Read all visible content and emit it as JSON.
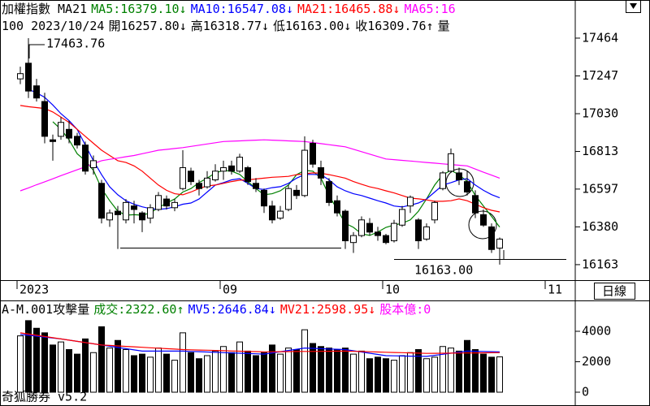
{
  "header": {
    "line1": [
      {
        "text": "加權指數 MA21",
        "color": "#000000"
      },
      {
        "text": "MA5:16379.10",
        "color": "#008000"
      },
      {
        "text": "↓",
        "color": "#008000"
      },
      {
        "text": "MA10:16547.08",
        "color": "#0000ff"
      },
      {
        "text": "↓",
        "color": "#0000ff"
      },
      {
        "text": "MA21:16465.88",
        "color": "#ff0000"
      },
      {
        "text": "↓",
        "color": "#ff0000"
      },
      {
        "text": "MA65:16",
        "color": "#ff00ff"
      }
    ],
    "line2": [
      {
        "text": "100 2023/10/24",
        "color": "#000000"
      },
      {
        "text": "開16257.80",
        "color": "#000000"
      },
      {
        "text": "↓",
        "color": "#000000"
      },
      {
        "text": "高16318.77",
        "color": "#000000"
      },
      {
        "text": "↓",
        "color": "#000000"
      },
      {
        "text": "低16163.00",
        "color": "#000000"
      },
      {
        "text": "↓",
        "color": "#000000"
      },
      {
        "text": "收16309.76",
        "color": "#000000"
      },
      {
        "text": "↑",
        "color": "#000000"
      },
      {
        "text": "量",
        "color": "#000000"
      }
    ]
  },
  "period": "日線",
  "footer": "奇狐勝券 v5.2",
  "chart_data": [
    {
      "type": "candlestick",
      "categories": [
        "2023",
        null,
        null,
        null,
        null,
        null,
        null,
        null,
        null,
        null,
        null,
        null,
        null,
        null,
        null,
        null,
        null,
        null,
        null,
        null,
        null,
        null,
        null,
        null,
        null,
        "09",
        null,
        null,
        null,
        null,
        null,
        null,
        null,
        null,
        null,
        null,
        null,
        null,
        null,
        null,
        null,
        null,
        null,
        null,
        null,
        "10",
        null,
        null,
        null,
        null,
        null,
        null,
        null,
        null,
        null,
        null,
        null,
        null,
        null,
        null,
        null,
        null,
        null,
        null,
        null,
        "11",
        null,
        null
      ],
      "open": [
        17230,
        17320,
        17190,
        17100,
        16880,
        16900,
        16940,
        16900,
        16850,
        16720,
        16630,
        16420,
        16470,
        16420,
        16500,
        16460,
        16430,
        16480,
        16540,
        16490,
        16600,
        16700,
        16630,
        16610,
        16650,
        16700,
        16730,
        16700,
        16720,
        16630,
        16590,
        16500,
        16430,
        16480,
        16590,
        16560,
        16860,
        16720,
        16640,
        16530,
        16470,
        16290,
        16330,
        16400,
        16350,
        16330,
        16300,
        16390,
        16500,
        16420,
        16310,
        16420,
        16600,
        16700,
        16690,
        16640,
        16560,
        16450,
        16380,
        16257.8,
        null,
        null,
        null,
        null,
        null,
        null,
        null,
        null
      ],
      "high": [
        17300,
        17463.76,
        17230,
        17150,
        16910,
        17010,
        16990,
        16920,
        16870,
        16790,
        16650,
        16480,
        16500,
        16540,
        16530,
        16470,
        16510,
        16580,
        16560,
        16540,
        16820,
        16720,
        16650,
        16700,
        16740,
        16760,
        16760,
        16800,
        16730,
        16660,
        16600,
        16530,
        16500,
        16620,
        16620,
        16900,
        16880,
        16760,
        16660,
        16560,
        16480,
        16350,
        16440,
        16430,
        16380,
        16340,
        16420,
        16500,
        16560,
        16430,
        16400,
        16530,
        16700,
        16830,
        16720,
        16700,
        16590,
        16480,
        16400,
        16318.77,
        null,
        null,
        null,
        null,
        null,
        null,
        null,
        null
      ],
      "low": [
        17200,
        17120,
        17100,
        16860,
        16760,
        16880,
        16860,
        16830,
        16680,
        16680,
        16400,
        16380,
        16253,
        16400,
        16400,
        16350,
        16400,
        16470,
        16480,
        16470,
        16590,
        16620,
        16560,
        16600,
        16640,
        16650,
        16680,
        16690,
        16620,
        16580,
        16460,
        16400,
        16420,
        16470,
        16540,
        16550,
        16720,
        16620,
        16500,
        16440,
        16253,
        16230,
        16320,
        16330,
        16300,
        16280,
        16290,
        16380,
        16460,
        16253,
        16300,
        16400,
        16590,
        16690,
        16620,
        16560,
        16430,
        16380,
        16230,
        16163.0,
        null,
        null,
        null,
        null,
        null,
        null,
        null,
        null
      ],
      "close": [
        17260,
        17160,
        17120,
        16900,
        16870,
        16980,
        16890,
        16850,
        16700,
        16760,
        16430,
        16460,
        16450,
        16520,
        16480,
        16420,
        16490,
        16560,
        16500,
        16520,
        16720,
        16640,
        16600,
        16660,
        16700,
        16720,
        16700,
        16780,
        16640,
        16600,
        16500,
        16420,
        16470,
        16600,
        16560,
        16820,
        16740,
        16660,
        16520,
        16460,
        16300,
        16330,
        16420,
        16350,
        16330,
        16290,
        16400,
        16480,
        16550,
        16300,
        16380,
        16520,
        16690,
        16800,
        16650,
        16580,
        16460,
        16390,
        16250,
        16309.76,
        null,
        null,
        null,
        null,
        null,
        null,
        null,
        null
      ],
      "up_color": "#ffffff",
      "down_color": "#000000",
      "series": [
        {
          "name": "MA5",
          "color": "#008000",
          "values": [
            null,
            null,
            null,
            null,
            16984,
            16940,
            16880,
            16800,
            16760,
            16704,
            16600,
            16530,
            16470,
            16447,
            16450,
            16447,
            16460,
            16490,
            16517,
            16540,
            16580,
            16600,
            16634,
            16660,
            16690,
            16704,
            16700,
            16681,
            16640,
            16600,
            16564,
            16570,
            16587,
            16620,
            16680,
            16704,
            16700,
            16660,
            16560,
            16480,
            16400,
            16377,
            16340,
            16331,
            16350,
            16377,
            16390,
            16401,
            16420,
            16470,
            16541,
            16620,
            16680,
            16704,
            16680,
            16640,
            16560,
            16500,
            16440,
            16379.1,
            null,
            null,
            null,
            null,
            null,
            null,
            null,
            null
          ]
        },
        {
          "name": "MA10",
          "color": "#0000ff",
          "values": [
            null,
            17170,
            17150,
            17124,
            17080,
            17030,
            16990,
            16940,
            16850,
            16760,
            16680,
            16610,
            16564,
            16530,
            16510,
            16495,
            16485,
            16480,
            16485,
            16495,
            16510,
            16517,
            16540,
            16580,
            16620,
            16634,
            16650,
            16657,
            16630,
            16600,
            16595,
            16605,
            16611,
            16630,
            16660,
            16681,
            16681,
            16680,
            16650,
            16610,
            16587,
            16570,
            16560,
            16545,
            16530,
            16517,
            16500,
            16494,
            16505,
            16517,
            16540,
            16580,
            16620,
            16634,
            16650,
            16657,
            16620,
            16590,
            16565,
            16547.08,
            null,
            null,
            null,
            null,
            null,
            null,
            null,
            null
          ]
        },
        {
          "name": "MA21",
          "color": "#ff0000",
          "values": [
            17077,
            17070,
            17065,
            17060,
            17040,
            17010,
            16980,
            16940,
            16900,
            16860,
            16820,
            16790,
            16760,
            16750,
            16730,
            16700,
            16660,
            16620,
            16590,
            16570,
            16564,
            16580,
            16600,
            16615,
            16620,
            16630,
            16640,
            16648,
            16650,
            16655,
            16660,
            16665,
            16667,
            16670,
            16680,
            16685,
            16690,
            16688,
            16680,
            16670,
            16660,
            16640,
            16625,
            16610,
            16600,
            16587,
            16575,
            16560,
            16545,
            16541,
            16535,
            16527,
            16527,
            16530,
            16541,
            16530,
            16510,
            16490,
            16475,
            16465.88,
            null,
            null,
            null,
            null,
            null,
            null,
            null,
            null
          ]
        },
        {
          "name": "MA65",
          "color": "#ff00ff",
          "values": [
            16587,
            16604,
            16622,
            16639,
            16656,
            16674,
            16691,
            16708,
            16725,
            16743,
            16760,
            16768,
            16775,
            16783,
            16790,
            16800,
            16810,
            16820,
            16825,
            16830,
            16835,
            16842,
            16849,
            16856,
            16863,
            16870,
            16872,
            16874,
            16876,
            16878,
            16880,
            16878,
            16876,
            16874,
            16872,
            16870,
            16864,
            16858,
            16852,
            16846,
            16840,
            16826,
            16812,
            16798,
            16784,
            16770,
            16766,
            16762,
            16758,
            16754,
            16750,
            16746,
            16742,
            16738,
            16734,
            16730,
            16712,
            16694,
            16677,
            16660,
            null,
            null,
            null,
            null,
            null,
            null,
            null,
            null
          ]
        }
      ],
      "ylim": [
        16074,
        17683
      ],
      "yticks": [
        17464,
        17247,
        17030,
        16813,
        16597,
        16380,
        16163
      ],
      "annotations": [
        "17463.76",
        "16163.00"
      ]
    },
    {
      "type": "bar",
      "header": [
        {
          "text": "A-M.001攻擊量",
          "color": "#000000"
        },
        {
          "text": "成交:2322.60",
          "color": "#008000"
        },
        {
          "text": "↑",
          "color": "#008000"
        },
        {
          "text": "MV5:2646.84",
          "color": "#0000ff"
        },
        {
          "text": "↓",
          "color": "#0000ff"
        },
        {
          "text": "MV21:2598.95",
          "color": "#ff0000"
        },
        {
          "text": "↓",
          "color": "#ff0000"
        },
        {
          "text": "股本億:0",
          "color": "#ff00ff"
        }
      ],
      "values": [
        3700,
        4700,
        4200,
        3900,
        3100,
        3300,
        2800,
        2500,
        3500,
        2600,
        4300,
        2900,
        3400,
        2800,
        2400,
        2500,
        2300,
        2900,
        2500,
        2100,
        3900,
        2600,
        2200,
        2400,
        2700,
        3000,
        2600,
        3300,
        2700,
        2400,
        2600,
        3100,
        2500,
        2900,
        2800,
        4100,
        3200,
        3000,
        2900,
        2800,
        2900,
        2500,
        2700,
        2200,
        2300,
        2200,
        2100,
        2400,
        2600,
        2800,
        2200,
        2300,
        3000,
        2900,
        2700,
        3400,
        2800,
        2500,
        2300,
        2322.6,
        null,
        null,
        null,
        null,
        null,
        null,
        null,
        null
      ],
      "series": [
        {
          "name": "MV5",
          "color": "#0000ff",
          "values": [
            3800,
            3740,
            3680,
            3620,
            3560,
            3500,
            3420,
            3340,
            3260,
            3180,
            3100,
            3020,
            2940,
            2860,
            2780,
            2700,
            2700,
            2700,
            2700,
            2700,
            2700,
            2680,
            2660,
            2640,
            2620,
            2600,
            2580,
            2560,
            2540,
            2520,
            2500,
            2580,
            2660,
            2740,
            2820,
            2900,
            2880,
            2860,
            2840,
            2820,
            2800,
            2720,
            2640,
            2560,
            2480,
            2400,
            2390,
            2380,
            2370,
            2360,
            2350,
            2420,
            2490,
            2560,
            2630,
            2700,
            2690,
            2680,
            2660,
            2646.84,
            null,
            null,
            null,
            null,
            null,
            null,
            null,
            null
          ]
        },
        {
          "name": "MV21",
          "color": "#ff0000",
          "values": [
            3900,
            3820,
            3740,
            3660,
            3580,
            3500,
            3420,
            3340,
            3260,
            3180,
            3100,
            3070,
            3040,
            3010,
            2980,
            2950,
            2920,
            2890,
            2860,
            2830,
            2800,
            2785,
            2770,
            2755,
            2740,
            2725,
            2710,
            2695,
            2680,
            2665,
            2650,
            2655,
            2660,
            2665,
            2670,
            2675,
            2680,
            2685,
            2690,
            2695,
            2700,
            2685,
            2670,
            2655,
            2640,
            2625,
            2610,
            2595,
            2580,
            2565,
            2550,
            2555,
            2560,
            2565,
            2570,
            2575,
            2580,
            2585,
            2590,
            2598.95,
            null,
            null,
            null,
            null,
            null,
            null,
            null,
            null
          ]
        }
      ],
      "ylim": [
        -907,
        6027
      ],
      "yticks": [
        4000,
        2000,
        0
      ]
    }
  ]
}
